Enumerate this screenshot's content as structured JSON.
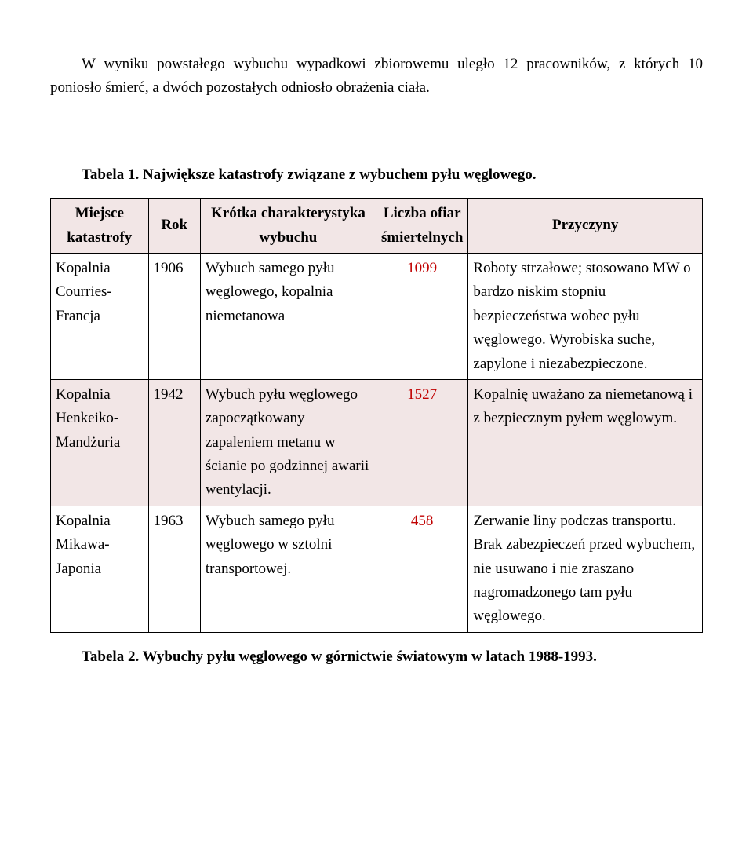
{
  "intro": "W wyniku powstałego wybuchu wypadkowi zbiorowemu uległo 12 pracowników, z których 10 poniosło śmierć, a dwóch pozostałych odniosło obrażenia ciała.",
  "table1_caption": "Tabela 1. Największe katastrofy związane z wybuchem pyłu węglowego.",
  "colors": {
    "header_bg": "#f2e6e6",
    "row_a_bg": "#ffffff",
    "row_b_bg": "#f2e6e6",
    "victim_color": "#c00000"
  },
  "headers": {
    "place": "Miejsce katastrofy",
    "year": "Rok",
    "desc": "Krótka charakterystyka wybuchu",
    "victims": "Liczba ofiar śmiertelnych",
    "causes": "Przyczyny"
  },
  "rows": [
    {
      "place": "Kopalnia Courries- Francja",
      "year": "1906",
      "desc": "Wybuch samego pyłu węglowego, kopalnia niemetanowa",
      "victims": "1099",
      "causes": "Roboty strzałowe; stosowano MW o bardzo niskim stopniu bezpieczeństwa wobec pyłu węglowego. Wyrobiska suche, zapylone i niezabezpieczone."
    },
    {
      "place": "Kopalnia Henkeiko- Mandżuria",
      "year": "1942",
      "desc": "Wybuch pyłu węglowego zapoczątkowany zapaleniem metanu w ścianie po godzinnej awarii wentylacji.",
      "victims": "1527",
      "causes": "Kopalnię uważano za niemetanową i z bezpiecznym pyłem węglowym."
    },
    {
      "place": "Kopalnia Mikawa- Japonia",
      "year": "1963",
      "desc": "Wybuch samego pyłu węglowego w sztolni transportowej.",
      "victims": "458",
      "causes": "Zerwanie liny podczas transportu. Brak zabezpieczeń przed wybuchem, nie usuwano i nie zraszano nagromadzonego tam pyłu węglowego."
    }
  ],
  "table2_caption": "Tabela 2. Wybuchy pyłu węglowego w górnictwie światowym w latach 1988-1993.",
  "col_widths": [
    "15%",
    "8%",
    "27%",
    "14%",
    "36%"
  ]
}
